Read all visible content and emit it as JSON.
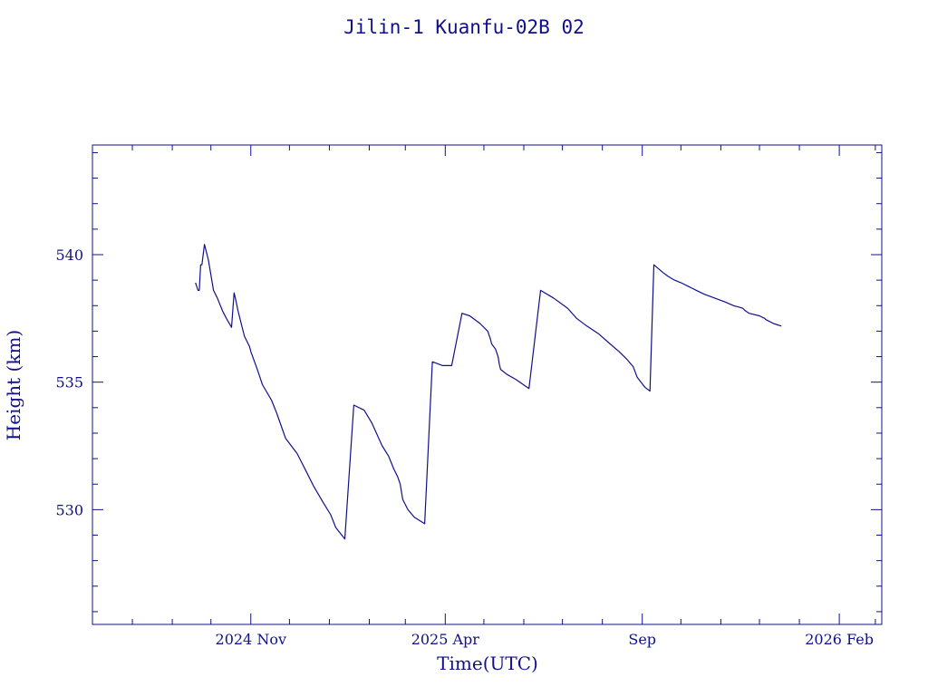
{
  "chart_data": {
    "type": "line",
    "title": "Jilin-1 Kuanfu-02B 02",
    "xlabel": "Time(UTC)",
    "ylabel": "Height (km)",
    "x_ticks": [
      {
        "date": "2024-11-01",
        "label": "2024 Nov"
      },
      {
        "date": "2025-04-01",
        "label": "2025 Apr"
      },
      {
        "date": "2025-09-01",
        "label": "Sep"
      },
      {
        "date": "2026-02-01",
        "label": "2026 Feb"
      }
    ],
    "y_ticks": [
      530,
      535,
      540
    ],
    "xlim": [
      "2024-07-01",
      "2026-03-06"
    ],
    "ylim": [
      525.5,
      544.3
    ],
    "color": "#10108a",
    "grid": false,
    "series": [
      {
        "x": [
          "2024-09-19",
          "2024-09-21",
          "2024-09-22",
          "2024-09-23",
          "2024-09-24",
          "2024-09-26",
          "2024-09-29",
          "2024-10-03",
          "2024-10-06",
          "2024-10-10",
          "2024-10-13",
          "2024-10-17",
          "2024-10-19",
          "2024-10-20",
          "2024-10-22",
          "2024-10-27",
          "2024-10-31",
          "2024-11-01",
          "2024-11-06",
          "2024-11-10",
          "2024-11-17",
          "2024-11-21",
          "2024-11-28",
          "2024-12-07",
          "2024-12-14",
          "2024-12-20",
          "2024-12-27",
          "2025-01-02",
          "2025-01-06",
          "2025-01-13",
          "2025-01-20",
          "2025-01-28",
          "2025-02-03",
          "2025-02-11",
          "2025-02-16",
          "2025-02-20",
          "2025-02-23",
          "2025-02-25",
          "2025-02-26",
          "2025-02-27",
          "2025-03-03",
          "2025-03-08",
          "2025-03-16",
          "2025-03-22",
          "2025-03-30",
          "2025-04-06",
          "2025-04-14",
          "2025-04-20",
          "2025-04-28",
          "2025-05-04",
          "2025-05-05",
          "2025-05-06",
          "2025-05-07",
          "2025-05-10",
          "2025-05-12",
          "2025-05-13",
          "2025-05-14",
          "2025-05-19",
          "2025-05-26",
          "2025-06-05",
          "2025-06-14",
          "2025-06-24",
          "2025-07-05",
          "2025-07-12",
          "2025-07-20",
          "2025-07-29",
          "2025-08-07",
          "2025-08-14",
          "2025-08-20",
          "2025-08-25",
          "2025-08-28",
          "2025-08-31",
          "2025-09-03",
          "2025-09-07",
          "2025-09-10",
          "2025-09-17",
          "2025-09-21",
          "2025-09-26",
          "2025-10-01",
          "2025-10-07",
          "2025-10-13",
          "2025-10-19",
          "2025-10-27",
          "2025-11-04",
          "2025-11-11",
          "2025-11-18",
          "2025-11-20",
          "2025-11-23",
          "2025-12-01",
          "2025-12-05",
          "2025-12-06",
          "2025-12-08",
          "2025-12-12",
          "2025-12-18"
        ],
        "y": [
          538.9,
          538.6,
          538.6,
          539.6,
          539.6,
          540.4,
          539.8,
          538.6,
          538.3,
          537.8,
          537.5,
          537.15,
          538.5,
          538.3,
          537.8,
          536.8,
          536.4,
          536.2,
          535.5,
          534.9,
          534.3,
          533.8,
          532.8,
          532.2,
          531.5,
          530.9,
          530.3,
          529.8,
          529.3,
          528.85,
          534.1,
          533.9,
          533.4,
          532.5,
          532.1,
          531.6,
          531.3,
          531.0,
          530.7,
          530.4,
          530.0,
          529.7,
          529.45,
          535.8,
          535.65,
          535.65,
          537.7,
          537.6,
          537.3,
          537.0,
          536.85,
          536.7,
          536.5,
          536.3,
          536.0,
          535.7,
          535.5,
          535.3,
          535.1,
          534.75,
          538.6,
          538.3,
          537.9,
          537.5,
          537.2,
          536.9,
          536.5,
          536.2,
          535.9,
          535.6,
          535.2,
          535.0,
          534.8,
          534.65,
          539.6,
          539.3,
          539.15,
          539.0,
          538.9,
          538.75,
          538.6,
          538.45,
          538.3,
          538.15,
          538.0,
          537.9,
          537.8,
          537.7,
          537.6,
          537.5,
          537.45,
          537.4,
          537.3,
          537.2
        ]
      }
    ]
  }
}
